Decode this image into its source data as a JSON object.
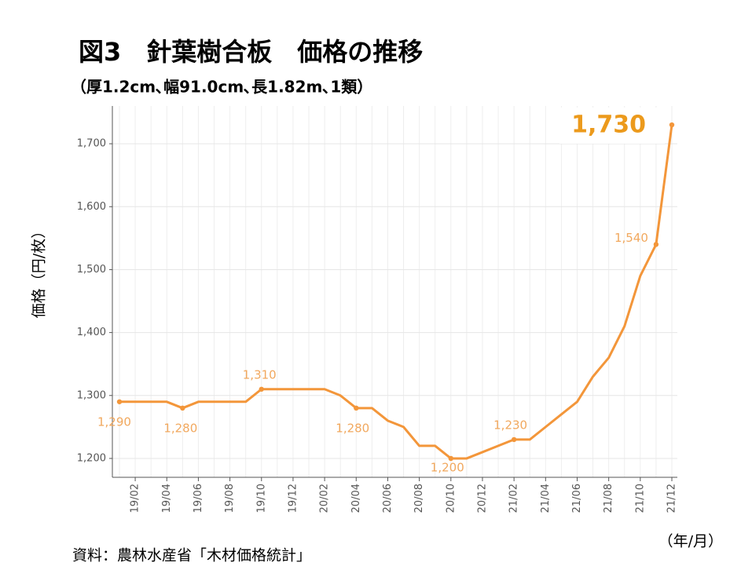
{
  "chart_data": {
    "type": "line",
    "title": "図3　針葉樹合板　価格の推移",
    "subtitle": "（厚1.2cm､幅91.0cm､長1.82m､1類）",
    "y_label": "価格（円/枚）",
    "x_label": "（年/月）",
    "source": "資料：農林水産省「木材価格統計」",
    "categories": [
      null,
      "19/02",
      null,
      "19/04",
      null,
      "19/06",
      null,
      "19/08",
      null,
      "19/10",
      null,
      "19/12",
      null,
      "20/02",
      null,
      "20/04",
      null,
      "20/06",
      null,
      "20/08",
      null,
      "20/10",
      null,
      "20/12",
      null,
      "21/02",
      null,
      "21/04",
      null,
      "21/06",
      null,
      "21/08",
      null,
      "21/10",
      null,
      "21/12"
    ],
    "series": [
      {
        "name": "価格",
        "color": "#f3963a",
        "values": [
          1290,
          1290,
          1290,
          1290,
          1280,
          1290,
          1290,
          1290,
          1290,
          1310,
          1310,
          1310,
          1310,
          1310,
          1300,
          1280,
          1280,
          1260,
          1250,
          1220,
          1220,
          1200,
          1200,
          1210,
          1220,
          1230,
          1230,
          1250,
          1270,
          1290,
          1330,
          1360,
          1410,
          1490,
          1540,
          1730
        ],
        "value_labels": [
          "1,290",
          null,
          null,
          null,
          "1,280",
          null,
          null,
          null,
          null,
          "1,310",
          null,
          null,
          null,
          null,
          null,
          "1,280",
          null,
          null,
          null,
          null,
          null,
          "1,200",
          null,
          null,
          null,
          "1,230",
          null,
          null,
          null,
          null,
          null,
          null,
          null,
          null,
          "1,540",
          "1,730"
        ]
      }
    ],
    "ylim": [
      1170,
      1760
    ],
    "yticks": [
      {
        "value": 1200,
        "label": "1,200"
      },
      {
        "value": 1300,
        "label": "1,300"
      },
      {
        "value": 1400,
        "label": "1,400"
      },
      {
        "value": 1500,
        "label": "1,500"
      },
      {
        "value": 1600,
        "label": "1,600"
      },
      {
        "value": 1700,
        "label": "1,700"
      }
    ],
    "grid": true
  }
}
